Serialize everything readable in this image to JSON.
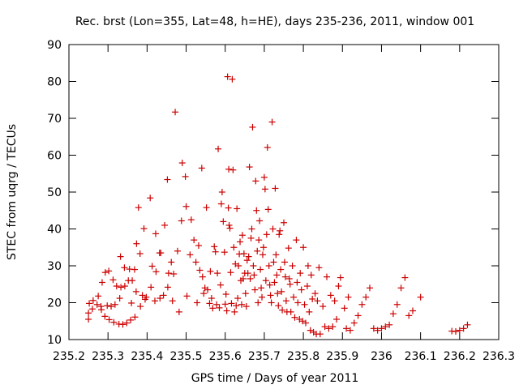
{
  "chart_data": {
    "type": "scatter",
    "title": "Rec. brst (Lon=355, Lat=48, h=HE), days 235-236, 2011, window 001",
    "xlabel": "GPS time / Days of year 2011",
    "ylabel": "STEC from uqrg / TECUs",
    "xlim": [
      235.2,
      236.3
    ],
    "ylim": [
      10,
      90
    ],
    "xticks": [
      "235.2",
      "235.3",
      "235.4",
      "235.5",
      "235.6",
      "235.7",
      "235.8",
      "235.9",
      "236",
      "236.1",
      "236.2",
      "236.3"
    ],
    "yticks": [
      "10",
      "20",
      "30",
      "40",
      "50",
      "60",
      "70",
      "80",
      "90"
    ],
    "grid": false,
    "marker": "+",
    "color": "#cc0000",
    "points": [
      [
        235.25,
        15.5
      ],
      [
        235.25,
        17.2
      ],
      [
        235.252,
        19.8
      ],
      [
        235.26,
        18.3
      ],
      [
        235.262,
        20.6
      ],
      [
        235.272,
        19.5
      ],
      [
        235.275,
        21.8
      ],
      [
        235.282,
        19.0
      ],
      [
        235.283,
        18.1
      ],
      [
        235.285,
        25.5
      ],
      [
        235.292,
        16.3
      ],
      [
        235.293,
        28.2
      ],
      [
        235.298,
        19.2
      ],
      [
        235.302,
        28.6
      ],
      [
        235.303,
        15.4
      ],
      [
        235.308,
        19.0
      ],
      [
        235.313,
        26.2
      ],
      [
        235.315,
        14.7
      ],
      [
        235.318,
        19.5
      ],
      [
        235.322,
        24.5
      ],
      [
        235.328,
        14.2
      ],
      [
        235.33,
        21.2
      ],
      [
        235.332,
        32.5
      ],
      [
        235.333,
        24.2
      ],
      [
        235.338,
        14.1
      ],
      [
        235.342,
        29.5
      ],
      [
        235.343,
        24.5
      ],
      [
        235.348,
        14.5
      ],
      [
        235.352,
        26.0
      ],
      [
        235.355,
        29.1
      ],
      [
        235.358,
        15.3
      ],
      [
        235.36,
        19.9
      ],
      [
        235.362,
        26.0
      ],
      [
        235.368,
        29.0
      ],
      [
        235.369,
        16.1
      ],
      [
        235.372,
        23.0
      ],
      [
        235.373,
        36.0
      ],
      [
        235.378,
        45.8
      ],
      [
        235.382,
        33.3
      ],
      [
        235.383,
        19.0
      ],
      [
        235.388,
        22.0
      ],
      [
        235.392,
        40.1
      ],
      [
        235.395,
        20.9
      ],
      [
        235.398,
        21.5
      ],
      [
        235.408,
        48.4
      ],
      [
        235.41,
        24.2
      ],
      [
        235.413,
        29.9
      ],
      [
        235.42,
        20.5
      ],
      [
        235.422,
        38.7
      ],
      [
        235.423,
        28.4
      ],
      [
        235.432,
        33.5
      ],
      [
        235.433,
        21.2
      ],
      [
        235.435,
        33.5
      ],
      [
        235.442,
        22.0
      ],
      [
        235.445,
        41.0
      ],
      [
        235.452,
        53.4
      ],
      [
        235.453,
        24.2
      ],
      [
        235.455,
        28.0
      ],
      [
        235.462,
        31.0
      ],
      [
        235.465,
        20.5
      ],
      [
        235.468,
        27.8
      ],
      [
        235.472,
        71.7
      ],
      [
        235.478,
        34.0
      ],
      [
        235.482,
        17.5
      ],
      [
        235.488,
        42.2
      ],
      [
        235.49,
        57.9
      ],
      [
        235.498,
        54.2
      ],
      [
        235.5,
        46.1
      ],
      [
        235.502,
        21.8
      ],
      [
        235.51,
        33.0
      ],
      [
        235.513,
        42.5
      ],
      [
        235.52,
        37.0
      ],
      [
        235.525,
        31.0
      ],
      [
        235.528,
        20.0
      ],
      [
        235.532,
        35.5
      ],
      [
        235.535,
        28.8
      ],
      [
        235.54,
        56.5
      ],
      [
        235.542,
        27.0
      ],
      [
        235.545,
        22.5
      ],
      [
        235.548,
        24.0
      ],
      [
        235.552,
        45.8
      ],
      [
        235.555,
        23.5
      ],
      [
        235.56,
        19.8
      ],
      [
        235.562,
        28.5
      ],
      [
        235.565,
        21.2
      ],
      [
        235.568,
        18.5
      ],
      [
        235.572,
        35.2
      ],
      [
        235.575,
        33.8
      ],
      [
        235.578,
        19.5
      ],
      [
        235.58,
        28.0
      ],
      [
        235.582,
        61.7
      ],
      [
        235.585,
        18.6
      ],
      [
        235.588,
        24.8
      ],
      [
        235.59,
        46.8
      ],
      [
        235.592,
        50.0
      ],
      [
        235.595,
        42.0
      ],
      [
        235.598,
        33.7
      ],
      [
        235.6,
        19.6
      ],
      [
        235.602,
        22.3
      ],
      [
        235.604,
        17.8
      ],
      [
        235.606,
        81.3
      ],
      [
        235.608,
        45.7
      ],
      [
        235.609,
        56.2
      ],
      [
        235.61,
        41.0
      ],
      [
        235.612,
        40.2
      ],
      [
        235.614,
        28.2
      ],
      [
        235.616,
        19.8
      ],
      [
        235.618,
        80.6
      ],
      [
        235.62,
        56.0
      ],
      [
        235.622,
        35.0
      ],
      [
        235.624,
        17.5
      ],
      [
        235.626,
        30.5
      ],
      [
        235.628,
        19.2
      ],
      [
        235.63,
        45.5
      ],
      [
        235.632,
        21.2
      ],
      [
        235.634,
        30.0
      ],
      [
        235.636,
        33.2
      ],
      [
        235.638,
        36.5
      ],
      [
        235.64,
        26.0
      ],
      [
        235.642,
        19.5
      ],
      [
        235.644,
        38.3
      ],
      [
        235.646,
        26.5
      ],
      [
        235.648,
        33.3
      ],
      [
        235.65,
        28.0
      ],
      [
        235.652,
        22.5
      ],
      [
        235.654,
        19.0
      ],
      [
        235.656,
        31.5
      ],
      [
        235.658,
        28.0
      ],
      [
        235.66,
        32.5
      ],
      [
        235.662,
        56.8
      ],
      [
        235.664,
        26.5
      ],
      [
        235.666,
        37.5
      ],
      [
        235.668,
        40.0
      ],
      [
        235.67,
        67.6
      ],
      [
        235.672,
        30.0
      ],
      [
        235.674,
        27.5
      ],
      [
        235.676,
        23.5
      ],
      [
        235.678,
        53.0
      ],
      [
        235.68,
        45.0
      ],
      [
        235.682,
        34.0
      ],
      [
        235.684,
        20.0
      ],
      [
        235.686,
        37.0
      ],
      [
        235.688,
        42.2
      ],
      [
        235.69,
        29.0
      ],
      [
        235.692,
        24.0
      ],
      [
        235.694,
        21.5
      ],
      [
        235.696,
        33.0
      ],
      [
        235.698,
        35.0
      ],
      [
        235.7,
        54.0
      ],
      [
        235.702,
        50.8
      ],
      [
        235.704,
        26.0
      ],
      [
        235.706,
        38.5
      ],
      [
        235.708,
        62.1
      ],
      [
        235.71,
        45.3
      ],
      [
        235.712,
        30.0
      ],
      [
        235.714,
        24.8
      ],
      [
        235.716,
        22.0
      ],
      [
        235.718,
        20.0
      ],
      [
        235.72,
        69.0
      ],
      [
        235.722,
        40.0
      ],
      [
        235.724,
        31.0
      ],
      [
        235.726,
        25.5
      ],
      [
        235.728,
        51.0
      ],
      [
        235.73,
        33.0
      ],
      [
        235.732,
        27.5
      ],
      [
        235.734,
        22.5
      ],
      [
        235.736,
        19.2
      ],
      [
        235.738,
        38.5
      ],
      [
        235.74,
        39.5
      ],
      [
        235.742,
        29.0
      ],
      [
        235.744,
        23.0
      ],
      [
        235.746,
        18.0
      ],
      [
        235.75,
        41.7
      ],
      [
        235.752,
        31.0
      ],
      [
        235.754,
        27.0
      ],
      [
        235.756,
        20.5
      ],
      [
        235.758,
        17.5
      ],
      [
        235.762,
        34.8
      ],
      [
        235.764,
        26.5
      ],
      [
        235.766,
        25.0
      ],
      [
        235.768,
        17.5
      ],
      [
        235.772,
        30.0
      ],
      [
        235.775,
        21.5
      ],
      [
        235.778,
        16.0
      ],
      [
        235.782,
        37.0
      ],
      [
        235.784,
        25.5
      ],
      [
        235.786,
        20.0
      ],
      [
        235.79,
        15.5
      ],
      [
        235.792,
        28.0
      ],
      [
        235.795,
        23.5
      ],
      [
        235.798,
        15.0
      ],
      [
        235.8,
        35.0
      ],
      [
        235.803,
        19.5
      ],
      [
        235.806,
        14.5
      ],
      [
        235.81,
        24.5
      ],
      [
        235.812,
        30.0
      ],
      [
        235.815,
        17.5
      ],
      [
        235.818,
        12.5
      ],
      [
        235.82,
        27.5
      ],
      [
        235.823,
        21.0
      ],
      [
        235.826,
        12.0
      ],
      [
        235.83,
        22.5
      ],
      [
        235.833,
        11.5
      ],
      [
        235.836,
        20.5
      ],
      [
        235.84,
        29.5
      ],
      [
        235.843,
        11.5
      ],
      [
        235.85,
        19.0
      ],
      [
        235.855,
        13.5
      ],
      [
        235.86,
        27.0
      ],
      [
        235.865,
        13.0
      ],
      [
        235.87,
        22.0
      ],
      [
        235.875,
        13.5
      ],
      [
        235.88,
        20.5
      ],
      [
        235.885,
        15.5
      ],
      [
        235.89,
        24.5
      ],
      [
        235.895,
        26.8
      ],
      [
        235.905,
        18.5
      ],
      [
        235.91,
        13.0
      ],
      [
        235.915,
        21.5
      ],
      [
        235.92,
        12.5
      ],
      [
        235.93,
        14.5
      ],
      [
        235.94,
        16.5
      ],
      [
        235.95,
        19.5
      ],
      [
        235.96,
        21.5
      ],
      [
        235.97,
        24.0
      ],
      [
        235.98,
        13.0
      ],
      [
        235.99,
        12.5
      ],
      [
        236.0,
        13.0
      ],
      [
        236.01,
        13.5
      ],
      [
        236.02,
        14.0
      ],
      [
        236.03,
        17.0
      ],
      [
        236.04,
        19.5
      ],
      [
        236.05,
        24.0
      ],
      [
        236.06,
        26.8
      ],
      [
        236.07,
        16.5
      ],
      [
        236.08,
        17.8
      ],
      [
        236.1,
        21.5
      ],
      [
        236.18,
        12.3
      ],
      [
        236.19,
        12.2
      ],
      [
        236.2,
        12.5
      ],
      [
        236.21,
        13.0
      ],
      [
        236.22,
        14.0
      ]
    ]
  }
}
